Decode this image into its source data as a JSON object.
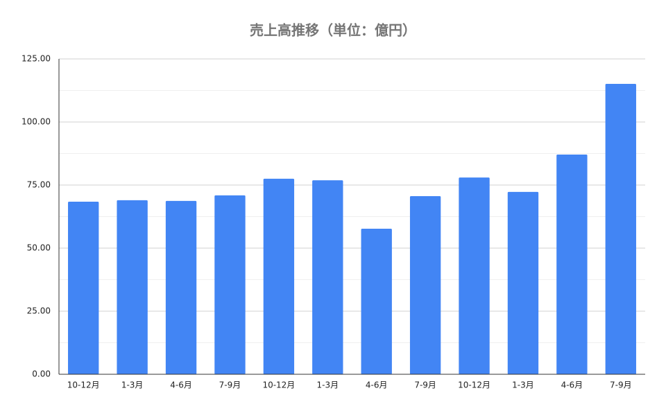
{
  "chart_data": {
    "type": "bar",
    "title": "売上高推移（単位：億円）",
    "categories": [
      "10-12月",
      "1-3月",
      "4-6月",
      "7-9月",
      "10-12月",
      "1-3月",
      "4-6月",
      "7-9月",
      "10-12月",
      "1-3月",
      "4-6月",
      "7-9月"
    ],
    "values": [
      68.4,
      69.0,
      68.7,
      70.9,
      77.5,
      76.9,
      57.7,
      70.6,
      78.0,
      72.3,
      87.1,
      115.1
    ],
    "color": "#4285f4",
    "ylim": [
      0,
      125
    ],
    "yticks": [
      {
        "value": 0,
        "label": "0.00"
      },
      {
        "value": 25,
        "label": "25.00"
      },
      {
        "value": 50,
        "label": "50.00"
      },
      {
        "value": 75,
        "label": "75.00"
      },
      {
        "value": 100,
        "label": "100.00"
      },
      {
        "value": 125,
        "label": "125.00"
      }
    ],
    "minor_yticks": [
      12.5,
      37.5,
      62.5,
      87.5,
      112.5
    ],
    "grid": true
  }
}
